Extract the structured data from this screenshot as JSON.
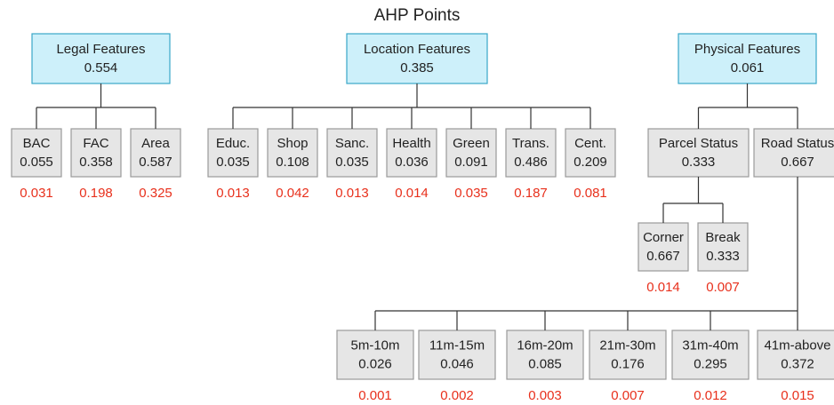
{
  "title": "AHP Points",
  "groups": [
    {
      "label": "Legal Features",
      "weight": 0.554,
      "children": [
        {
          "label": "BAC",
          "weight": 0.055,
          "global": 0.031
        },
        {
          "label": "FAC",
          "weight": 0.358,
          "global": 0.198
        },
        {
          "label": "Area",
          "weight": 0.587,
          "global": 0.325
        }
      ]
    },
    {
      "label": "Location Features",
      "weight": 0.385,
      "children": [
        {
          "label": "Educ.",
          "weight": 0.035,
          "global": 0.013
        },
        {
          "label": "Shop",
          "weight": 0.108,
          "global": 0.042
        },
        {
          "label": "Sanc.",
          "weight": 0.035,
          "global": 0.013
        },
        {
          "label": "Health",
          "weight": 0.036,
          "global": 0.014
        },
        {
          "label": "Green",
          "weight": 0.091,
          "global": 0.035
        },
        {
          "label": "Trans.",
          "weight": 0.486,
          "global": 0.187
        },
        {
          "label": "Cent.",
          "weight": 0.209,
          "global": 0.081
        }
      ]
    },
    {
      "label": "Physical Features",
      "weight": 0.061,
      "children": [
        {
          "label": "Parcel Status",
          "weight": 0.333,
          "children": [
            {
              "label": "Corner",
              "weight": 0.667,
              "global": 0.014
            },
            {
              "label": "Break",
              "weight": 0.333,
              "global": 0.007
            }
          ]
        },
        {
          "label": "Road Status",
          "weight": 0.667,
          "children": [
            {
              "label": "5m-10m",
              "weight": 0.026,
              "global": 0.001
            },
            {
              "label": "11m-15m",
              "weight": 0.046,
              "global": 0.002
            },
            {
              "label": "16m-20m",
              "weight": 0.085,
              "global": 0.003
            },
            {
              "label": "21m-30m",
              "weight": 0.176,
              "global": 0.007
            },
            {
              "label": "31m-40m",
              "weight": 0.295,
              "global": 0.012
            },
            {
              "label": "41m-above",
              "weight": 0.372,
              "global": 0.015
            }
          ]
        }
      ]
    }
  ]
}
